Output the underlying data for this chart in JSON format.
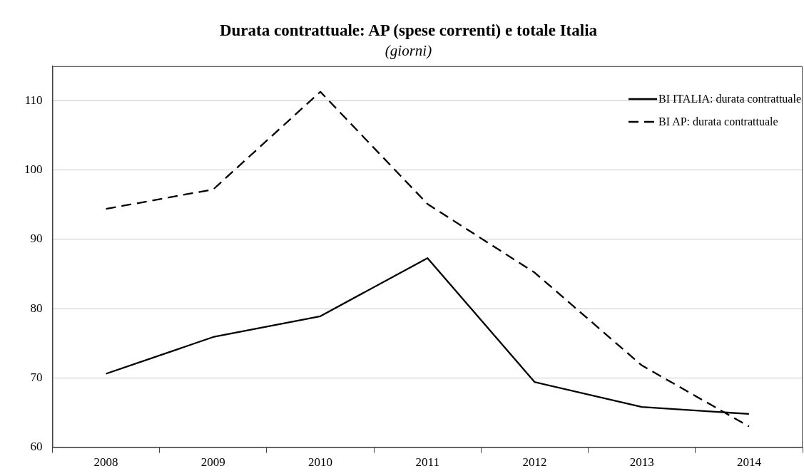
{
  "chart_data": {
    "type": "line",
    "title": "Durata contrattuale: AP (spese correnti) e totale Italia",
    "subtitle": "(giorni)",
    "categories": [
      "2008",
      "2009",
      "2010",
      "2011",
      "2012",
      "2013",
      "2014"
    ],
    "series": [
      {
        "name": "BI ITALIA: durata contrattuale",
        "color": "#000000",
        "line_style": "solid",
        "values": [
          70.6,
          75.9,
          78.9,
          87.3,
          69.4,
          65.8,
          64.8
        ]
      },
      {
        "name": "BI AP: durata contrattuale",
        "color": "#000000",
        "line_style": "dashed",
        "values": [
          94.4,
          97.2,
          111.3,
          95.1,
          85.2,
          71.8,
          63.0
        ]
      }
    ],
    "ylim": [
      60,
      115
    ],
    "yticks": [
      60,
      70,
      80,
      90,
      100,
      110
    ],
    "grid": "y",
    "legend": "top right",
    "marker": "none"
  }
}
